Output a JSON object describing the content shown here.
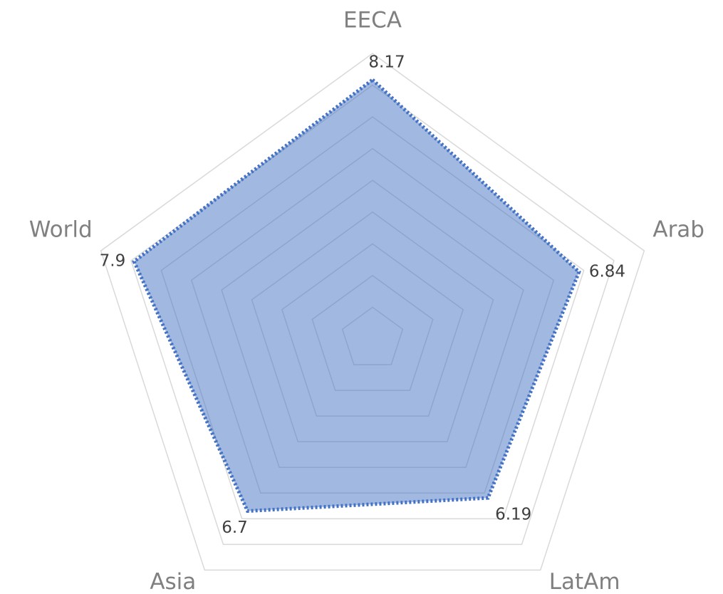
{
  "chart_data": {
    "type": "radar",
    "categories": [
      "EECA",
      "Arab",
      "LatAm",
      "Asia",
      "World"
    ],
    "series": [
      {
        "name": null,
        "color": "#4472c4",
        "values": [
          8.17,
          6.84,
          6.19,
          6.7,
          7.9
        ]
      }
    ],
    "ylim": [
      0,
      9
    ],
    "yticks": [
      0,
      1,
      2,
      3,
      4,
      5,
      6,
      7,
      8,
      9
    ],
    "grid": true
  }
}
